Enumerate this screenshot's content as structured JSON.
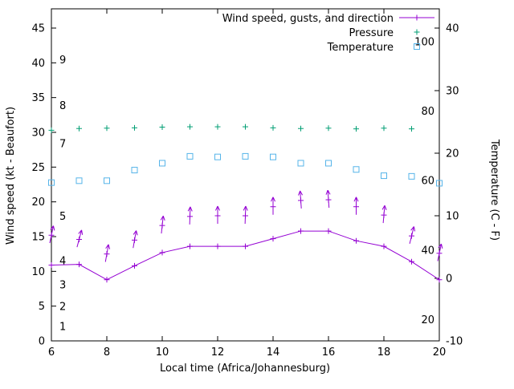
{
  "chart_data": {
    "type": "line",
    "xlabel": "Local time (Africa/Johannesburg)",
    "ylabel_left": "Wind speed (kt - Beaufort)",
    "ylabel_right": "Temperature (C - F)",
    "x_hours": [
      6,
      7,
      8,
      9,
      10,
      11,
      12,
      13,
      14,
      15,
      16,
      17,
      18,
      19,
      20
    ],
    "x_tick_labels": [
      6,
      8,
      10,
      12,
      14,
      16,
      18,
      20
    ],
    "left_axis": {
      "min": 0,
      "max": 45,
      "ticks": [
        0,
        5,
        10,
        15,
        20,
        25,
        30,
        35,
        40,
        45
      ]
    },
    "right_axis": {
      "min": -10,
      "max": 40,
      "ticks": [
        -10,
        0,
        10,
        20,
        30,
        40
      ]
    },
    "beaufort_scale_labels": [
      {
        "text": "1",
        "kt": 2.0
      },
      {
        "text": "2",
        "kt": 4.9
      },
      {
        "text": "3",
        "kt": 8.0
      },
      {
        "text": "4",
        "kt": 11.5
      },
      {
        "text": "5",
        "kt": 17.9
      },
      {
        "text": "7",
        "kt": 28.3
      },
      {
        "text": "8",
        "kt": 33.8
      },
      {
        "text": "9",
        "kt": 40.4
      }
    ],
    "fahrenheit_scale_labels": [
      {
        "text": "20",
        "f": 20
      },
      {
        "text": "40",
        "f": 40
      },
      {
        "text": "60",
        "f": 60
      },
      {
        "text": "80",
        "f": 80
      },
      {
        "text": "100",
        "f": 100
      }
    ],
    "series": [
      {
        "name": "Wind speed, gusts, and direction",
        "color": "#9400d3",
        "marker": "plus-line-with-arrows",
        "axis": "left",
        "units": "kt",
        "wind_speed_kt": [
          10.9,
          11.0,
          8.8,
          10.8,
          12.7,
          13.6,
          13.6,
          13.6,
          14.7,
          15.8,
          15.8,
          14.4,
          13.6,
          11.4,
          8.8
        ],
        "wind_gust_kt": [
          15.2,
          14.6,
          12.5,
          14.5,
          16.6,
          17.9,
          18.0,
          18.0,
          19.3,
          20.2,
          20.3,
          19.3,
          18.1,
          15.1,
          12.6
        ],
        "gust_arrow_tilt_deg": [
          12,
          15,
          10,
          10,
          6,
          2,
          0,
          2,
          0,
          -4,
          -4,
          0,
          5,
          14,
          12
        ]
      },
      {
        "name": "Pressure",
        "color": "#009e73",
        "marker": "plus",
        "axis": "unlabeled (plotted against left axis units)",
        "hours": [
          6,
          7,
          8,
          9,
          10,
          11,
          12,
          13,
          14,
          15,
          16,
          17,
          18,
          19
        ],
        "values_left_axis_units": [
          30.3,
          30.55,
          30.6,
          30.65,
          30.75,
          30.8,
          30.8,
          30.8,
          30.65,
          30.55,
          30.6,
          30.5,
          30.6,
          30.5
        ]
      },
      {
        "name": "Temperature",
        "color": "#56b4e9",
        "marker": "open-square",
        "axis": "right",
        "units": "C",
        "values_c": [
          15.3,
          15.6,
          15.6,
          17.3,
          18.4,
          19.5,
          19.4,
          19.5,
          19.4,
          18.4,
          18.4,
          17.4,
          16.4,
          16.3,
          15.2
        ]
      }
    ],
    "legend": {
      "position": "top-right-inside"
    }
  }
}
